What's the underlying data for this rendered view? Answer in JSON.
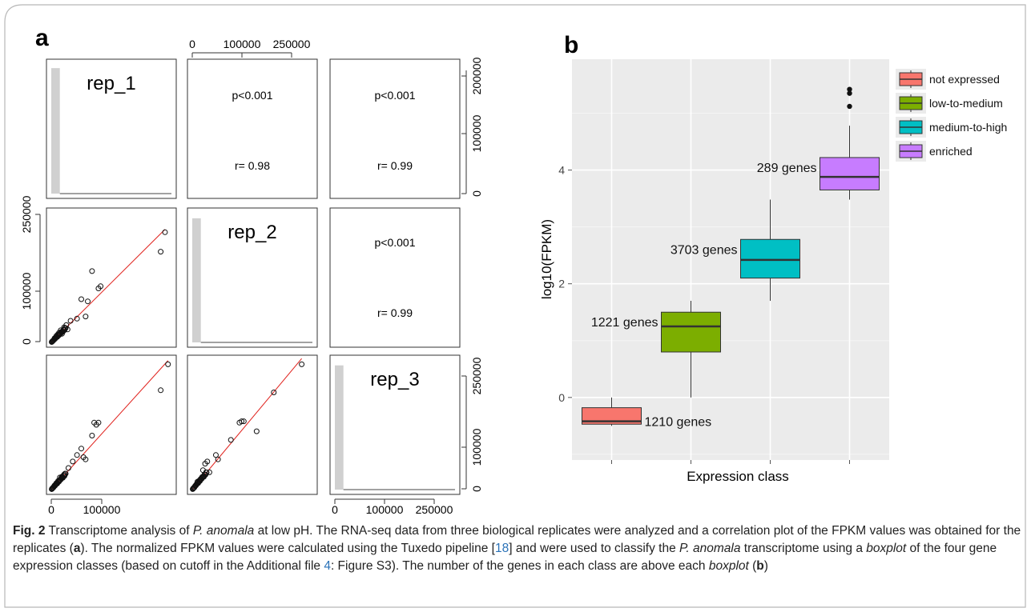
{
  "panel_a": {
    "label": "a",
    "diag_labels": [
      "rep_1",
      "rep_2",
      "rep_3"
    ],
    "stats": [
      {
        "p": "p<0.001",
        "r": "r= 0.98"
      },
      {
        "p": "p<0.001",
        "r": "r= 0.99"
      },
      {
        "p": "p<0.001",
        "r": "r= 0.99"
      }
    ],
    "top_axis_ticks": [
      "0",
      "100000",
      "250000"
    ],
    "right_axis_top_ticks": [
      "0",
      "100000",
      "200000"
    ],
    "right_axis_bottom_ticks": [
      "0",
      "100000",
      "250000"
    ],
    "left_axis_ticks": [
      "0",
      "100000",
      "250000"
    ],
    "bottom_axis_left_ticks": [
      "0",
      "100000"
    ],
    "bottom_axis_right_ticks": [
      "0",
      "100000",
      "250000"
    ]
  },
  "panel_b": {
    "label": "b"
  },
  "chart_data": [
    {
      "type": "scatter",
      "title": "",
      "matrix": "pairs plot of FPKM values for three replicates",
      "variables": [
        "rep_1",
        "rep_2",
        "rep_3"
      ],
      "correlations": [
        {
          "pair": [
            "rep_1",
            "rep_2"
          ],
          "p": "p<0.001",
          "r": 0.98
        },
        {
          "pair": [
            "rep_1",
            "rep_3"
          ],
          "p": "p<0.001",
          "r": 0.99
        },
        {
          "pair": [
            "rep_2",
            "rep_3"
          ],
          "p": "p<0.001",
          "r": 0.99
        }
      ],
      "scatter_rep2_vs_rep1": {
        "x": [
          2000,
          5000,
          8000,
          12000,
          15000,
          18000,
          22000,
          25000,
          30000,
          35000,
          38000,
          45000,
          60000,
          70000,
          80000,
          85000,
          95000,
          110000,
          115000,
          255000,
          265000
        ],
        "y": [
          2000,
          5000,
          10000,
          15000,
          18000,
          22000,
          28000,
          20000,
          35000,
          40000,
          30000,
          50000,
          55000,
          100000,
          60000,
          95000,
          165000,
          125000,
          130000,
          210000,
          255000
        ]
      },
      "scatter_rep3_vs_rep1": {
        "x": [
          2000,
          5000,
          8000,
          12000,
          16000,
          20000,
          25000,
          30000,
          40000,
          50000,
          60000,
          70000,
          75000,
          80000,
          95000,
          100000,
          105000,
          110000,
          255000,
          272000
        ],
        "y": [
          2000,
          5000,
          10000,
          15000,
          20000,
          28000,
          30000,
          35000,
          50000,
          65000,
          80000,
          95000,
          75000,
          70000,
          125000,
          155000,
          150000,
          155000,
          230000,
          290000
        ]
      },
      "scatter_rep3_vs_rep2": {
        "x": [
          2000,
          5000,
          8000,
          12000,
          15000,
          20000,
          25000,
          30000,
          35000,
          40000,
          55000,
          60000,
          90000,
          110000,
          115000,
          120000,
          150000,
          190000,
          255000
        ],
        "y": [
          2000,
          5000,
          10000,
          18000,
          20000,
          25000,
          45000,
          60000,
          65000,
          40000,
          80000,
          70000,
          115000,
          155000,
          158000,
          158000,
          135000,
          225000,
          290000
        ]
      },
      "histograms": {
        "rep_1": {
          "ylim": [
            0,
            220000
          ],
          "bins": [
            213000,
            1500,
            800,
            500,
            300,
            200,
            100
          ]
        },
        "rep_2": {
          "ylim": [
            0,
            260000
          ],
          "bins": [
            249000,
            2000,
            800,
            500,
            300,
            200,
            100
          ]
        },
        "rep_3": {
          "ylim": [
            0,
            290000
          ],
          "bins": [
            278000,
            1500,
            800,
            500,
            300,
            200,
            100
          ]
        }
      },
      "xlim": [
        0,
        280000
      ]
    },
    {
      "type": "box",
      "title": "",
      "xlabel": "Expression class",
      "ylabel": "log10(FPKM)",
      "ylim": [
        -1.1,
        5.95
      ],
      "yticks": [
        0,
        2,
        4
      ],
      "legend_position": "right",
      "series": [
        {
          "name": "not expressed",
          "color": "#f8766d",
          "count_label": "1210 genes",
          "min": -0.5,
          "q1": -0.47,
          "median": -0.42,
          "q3": -0.18,
          "max": 0.0,
          "outliers": []
        },
        {
          "name": "low-to-medium",
          "color": "#7cae00",
          "count_label": "1221 genes",
          "min": 0.0,
          "q1": 0.8,
          "median": 1.25,
          "q3": 1.5,
          "max": 1.7,
          "outliers": []
        },
        {
          "name": "medium-to-high",
          "color": "#00bfc4",
          "count_label": "3703 genes",
          "min": 1.7,
          "q1": 2.1,
          "median": 2.42,
          "q3": 2.78,
          "max": 3.48,
          "outliers": []
        },
        {
          "name": "enriched",
          "color": "#c77cff",
          "count_label": "289 genes",
          "min": 3.48,
          "q1": 3.65,
          "median": 3.88,
          "q3": 4.22,
          "max": 4.78,
          "outliers": [
            5.12,
            5.35,
            5.42
          ]
        }
      ]
    }
  ],
  "caption": {
    "fig_label": "Fig. 2",
    "parts": [
      {
        "t": "text",
        "v": "  Transcriptome analysis of "
      },
      {
        "t": "italic",
        "v": "P. anomala"
      },
      {
        "t": "text",
        "v": " at low pH. The RNA-seq data from three biological replicates were analyzed and a correlation plot of the FPKM values was obtained for the replicates ("
      },
      {
        "t": "bold",
        "v": "a"
      },
      {
        "t": "text",
        "v": "). The normalized FPKM values were calculated using the Tuxedo pipeline ["
      },
      {
        "t": "ref",
        "v": "18"
      },
      {
        "t": "text",
        "v": "] and were used to classify the "
      },
      {
        "t": "italic",
        "v": "P. anomala"
      },
      {
        "t": "text",
        "v": " transcriptome using a "
      },
      {
        "t": "italic",
        "v": "boxplot"
      },
      {
        "t": "text",
        "v": " of the four gene expression classes (based on cutoff in the Additional file "
      },
      {
        "t": "ref",
        "v": "4"
      },
      {
        "t": "text",
        "v": ": Figure S3). The number of the genes in each class are above each "
      },
      {
        "t": "italic",
        "v": "boxplot"
      },
      {
        "t": "text",
        "v": " ("
      },
      {
        "t": "bold",
        "v": "b"
      },
      {
        "t": "text",
        "v": ")"
      }
    ]
  }
}
